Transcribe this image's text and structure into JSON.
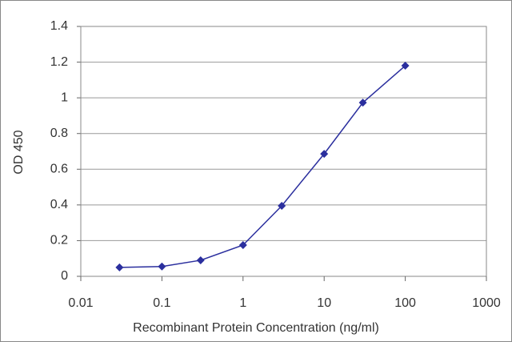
{
  "chart_data": {
    "type": "line",
    "x_label": "Recombinant Protein Concentration (ng/ml)",
    "y_label": "OD 450",
    "x": [
      0.03,
      0.1,
      0.3,
      1,
      3,
      10,
      30,
      100
    ],
    "values": [
      0.05,
      0.055,
      0.09,
      0.175,
      0.395,
      0.686,
      0.973,
      1.18
    ],
    "color": "#2b2f9e",
    "x_scale": "log",
    "xlim": [
      0.01,
      1000
    ],
    "xticks": [
      0.01,
      0.1,
      1,
      10,
      100,
      1000
    ],
    "ylim": [
      0,
      1.4
    ],
    "yticks": [
      0,
      0.2,
      0.4,
      0.6,
      0.8,
      1,
      1.2,
      1.4
    ],
    "grid": true
  }
}
